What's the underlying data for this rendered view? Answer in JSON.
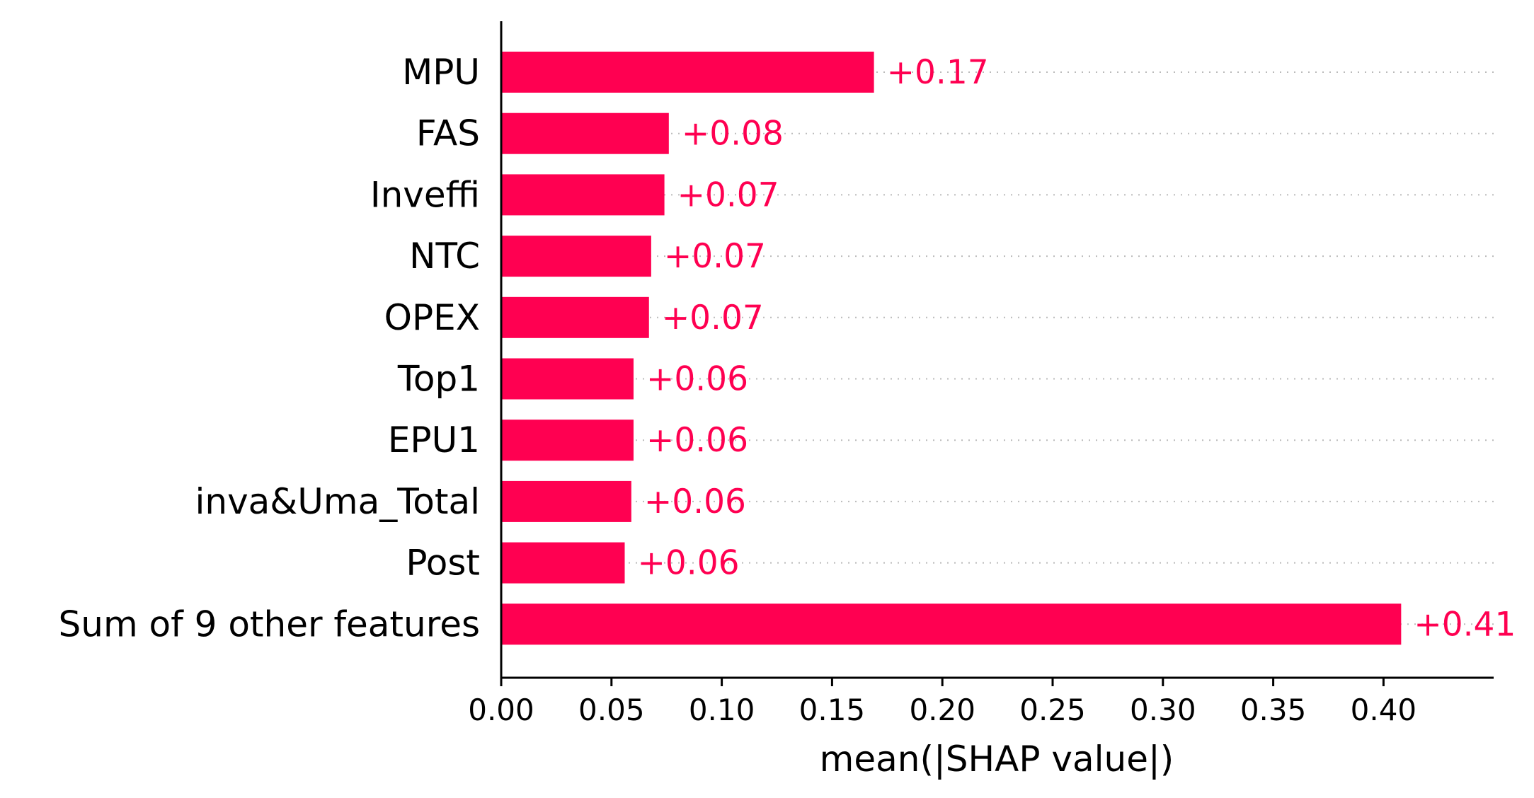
{
  "chart_data": {
    "type": "bar",
    "orientation": "horizontal",
    "categories": [
      "MPU",
      "FAS",
      "Inveffi",
      "NTC",
      "OPEX",
      "Top1",
      "EPU1",
      "inva&Uma_Total",
      "Post",
      "Sum of 9 other features"
    ],
    "values": [
      0.169,
      0.076,
      0.074,
      0.068,
      0.067,
      0.06,
      0.06,
      0.059,
      0.056,
      0.408
    ],
    "data_labels": [
      "+0.17",
      "+0.08",
      "+0.07",
      "+0.07",
      "+0.07",
      "+0.06",
      "+0.06",
      "+0.06",
      "+0.06",
      "+0.41"
    ],
    "xlabel": "mean(|SHAP value|)",
    "ylabel": "",
    "xlim": [
      0,
      0.45
    ],
    "xticks": [
      0.0,
      0.05,
      0.1,
      0.15,
      0.2,
      0.25,
      0.3,
      0.35,
      0.4
    ],
    "xtick_labels": [
      "0.00",
      "0.05",
      "0.10",
      "0.15",
      "0.20",
      "0.25",
      "0.30",
      "0.35",
      "0.40"
    ],
    "grid": "dotted guide lines per row",
    "bar_color": "#ff0051",
    "label_color": "#ff0051",
    "axis_color": "#000000",
    "guide_color": "#bbbbbb"
  }
}
